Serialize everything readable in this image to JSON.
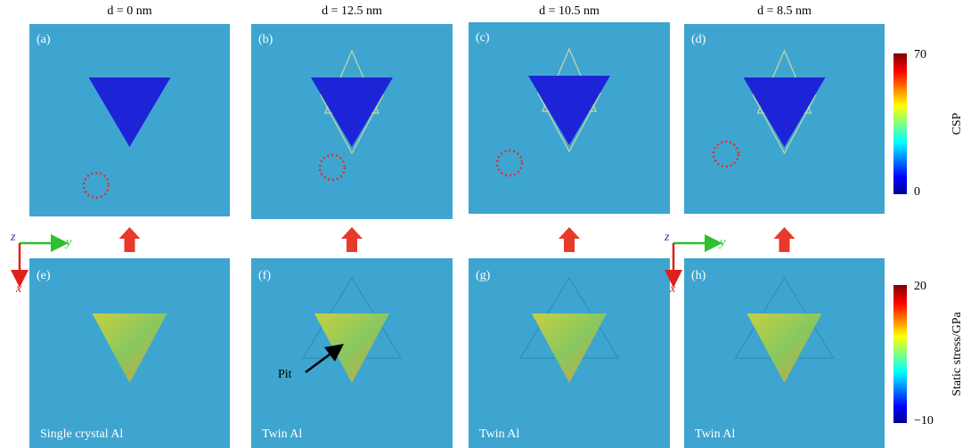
{
  "columns": [
    "d = 0 nm",
    "d = 12.5 nm",
    "d = 10.5 nm",
    "d = 8.5 nm"
  ],
  "panels": [
    "(a)",
    "(b)",
    "(c)",
    "(d)",
    "(e)",
    "(f)",
    "(g)",
    "(h)"
  ],
  "bottom_labels": [
    "Single crystal Al",
    "Twin Al",
    "Twin Al",
    "Twin Al"
  ],
  "pit_label": "Pit",
  "axes": {
    "z": "z",
    "y": "y",
    "x": "x"
  },
  "colorbars": [
    {
      "title": "CSP",
      "max": "70",
      "min": "0"
    },
    {
      "title": "Static stress/GPa",
      "max": "20",
      "min": "−10"
    }
  ]
}
